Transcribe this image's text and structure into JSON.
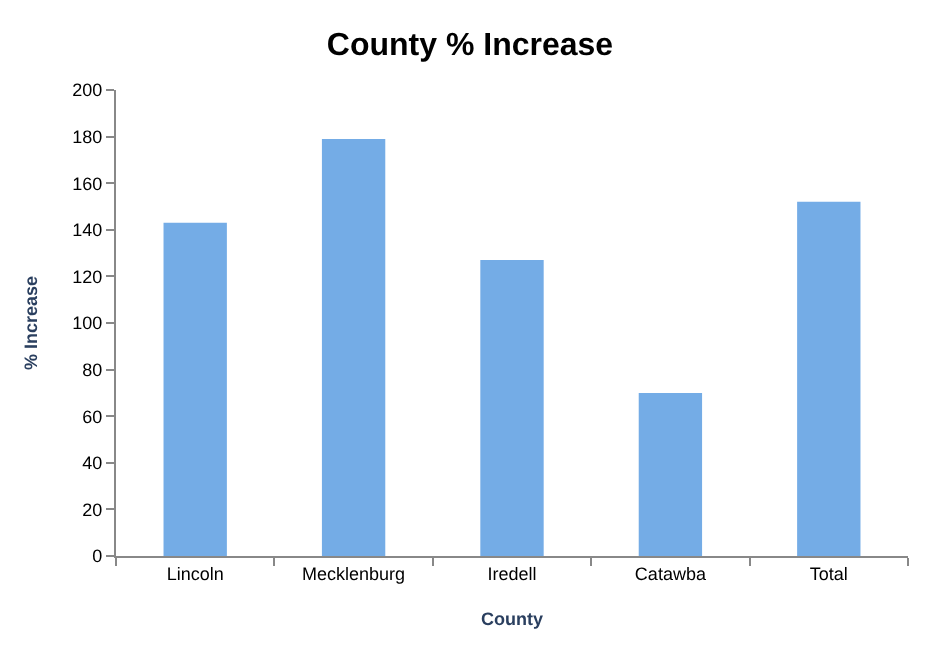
{
  "chart_data": {
    "type": "bar",
    "title": "County % Increase",
    "xlabel": "County",
    "ylabel": "% Increase",
    "categories": [
      "Lincoln",
      "Mecklenburg",
      "Iredell",
      "Catawba",
      "Total"
    ],
    "values": [
      143,
      179,
      127,
      70,
      152
    ],
    "color": "#74ace6",
    "ylim": [
      0,
      200
    ],
    "yticks": [
      0,
      20,
      40,
      60,
      80,
      100,
      120,
      140,
      160,
      180,
      200
    ],
    "grid": false,
    "legend": false
  }
}
